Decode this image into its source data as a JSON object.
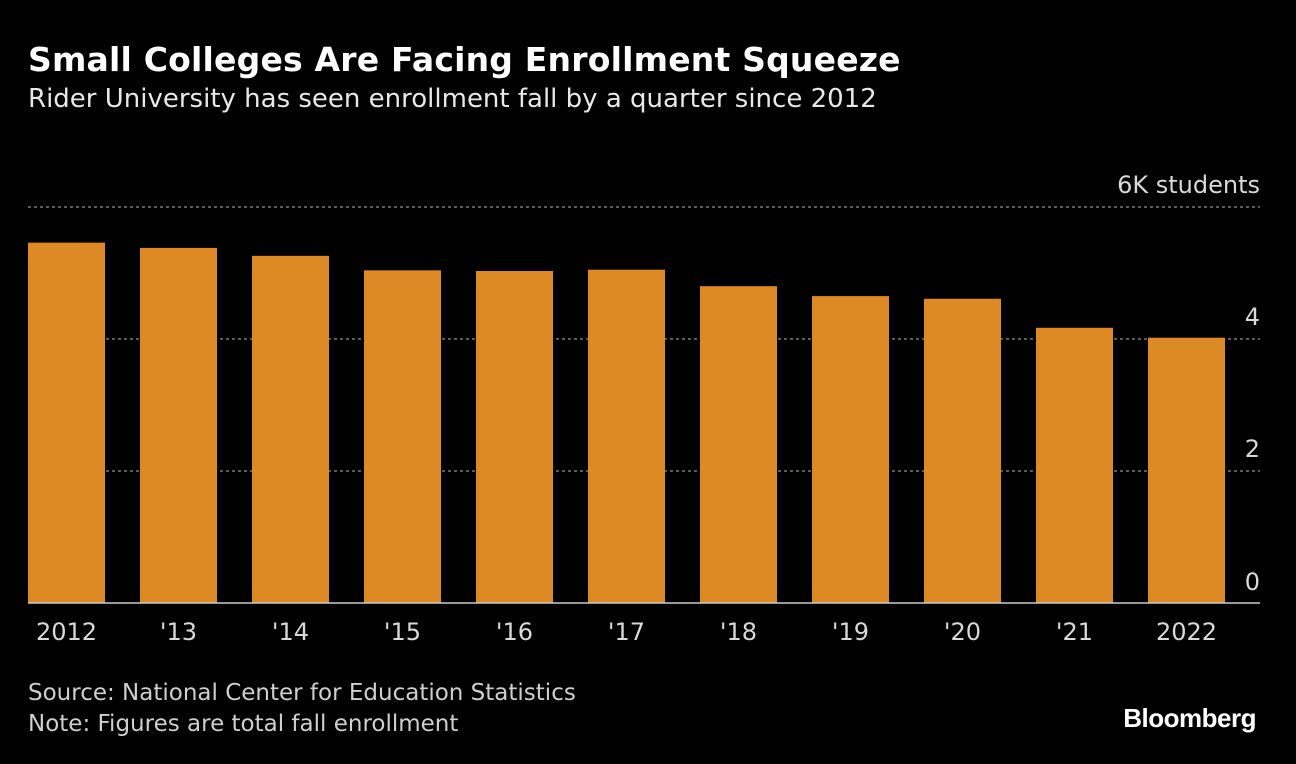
{
  "header": {
    "title": "Small Colleges Are Facing Enrollment Squeeze",
    "subtitle": "Rider University has seen enrollment fall by a quarter since 2012"
  },
  "footer": {
    "source": "Source: National Center for Education Statistics",
    "note": "Note: Figures are total fall enrollment",
    "brand": "Bloomberg"
  },
  "colors": {
    "background": "#000000",
    "bar": "#DE8A24",
    "grid": "#7a7a7a",
    "axis": "#cccccc",
    "tick_text": "#d9d9d9"
  },
  "chart_data": {
    "type": "bar",
    "title": "Small Colleges Are Facing Enrollment Squeeze",
    "subtitle": "Rider University has seen enrollment fall by a quarter since 2012",
    "xlabel": "",
    "ylabel": "6K students",
    "categories": [
      "2012",
      "'13",
      "'14",
      "'15",
      "'16",
      "'17",
      "'18",
      "'19",
      "'20",
      "'21",
      "2022"
    ],
    "values": [
      5.46,
      5.38,
      5.26,
      5.04,
      5.03,
      5.05,
      4.8,
      4.65,
      4.61,
      4.17,
      4.02
    ],
    "units": "thousand students",
    "ylim": [
      0,
      6
    ],
    "yticks": [
      0,
      2,
      4,
      6
    ],
    "ytick_labels": [
      "0",
      "2",
      "4",
      "6K students"
    ],
    "grid": true,
    "yaxis_position": "right"
  }
}
